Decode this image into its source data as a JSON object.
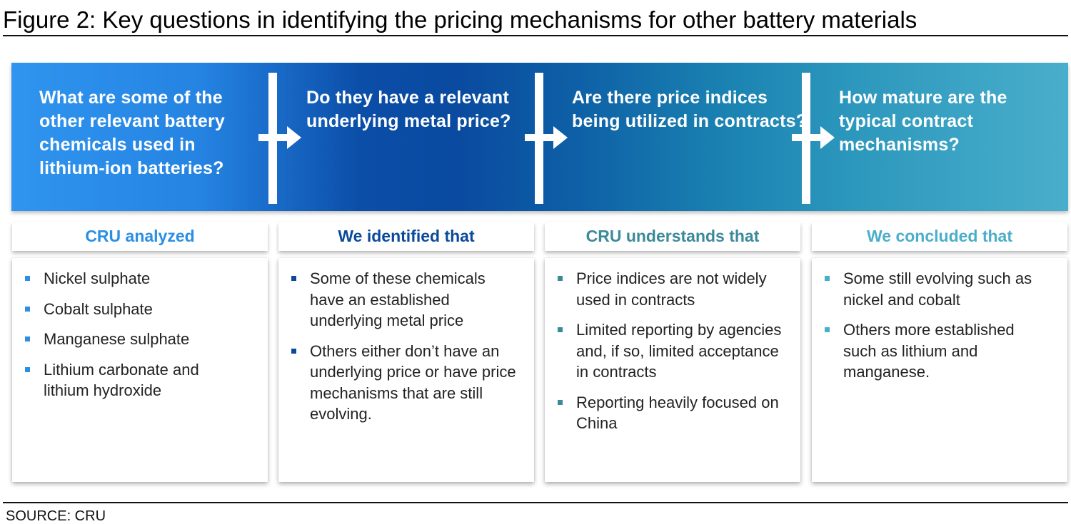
{
  "figure": {
    "title": "Figure 2: Key questions in identifying the pricing mechanisms for other battery materials",
    "source": "SOURCE: CRU"
  },
  "colors": {
    "banner_left": "#2f95ef",
    "banner_mid": "#0a4aa0",
    "banner_right": "#49aecb",
    "col1_accent": "#2a8ee5",
    "col2_accent": "#0b4a9a",
    "col3_accent": "#3a8a9a",
    "col4_accent": "#4aaecb"
  },
  "columns": [
    {
      "question": "What are some of the other relevant battery chemicals used in lithium-ion batteries?",
      "header": "CRU analyzed",
      "bullets": [
        "Nickel sulphate",
        "Cobalt sulphate",
        "Manganese sulphate",
        "Lithium carbonate and lithium hydroxide"
      ]
    },
    {
      "question": "Do they have a relevant underlying metal price?",
      "header": "We identified that",
      "bullets": [
        "Some of these chemicals have an established underlying metal price",
        "Others either don’t have an underlying price or have price mechanisms that are still evolving."
      ]
    },
    {
      "question": "Are there price indices being utilized in contracts?",
      "header": "CRU understands that",
      "bullets": [
        "Price indices are not widely used in contracts",
        "Limited reporting by agencies and, if so, limited acceptance in contracts",
        "Reporting heavily focused on China"
      ]
    },
    {
      "question": "How mature are the typical contract mechanisms?",
      "header": "We concluded that",
      "bullets": [
        "Some still evolving such as nickel and cobalt",
        "Others more established such as lithium and manganese."
      ]
    }
  ],
  "icons": {
    "flow_arrow": "arrow-right-icon",
    "bullet": "square-bullet-icon"
  }
}
